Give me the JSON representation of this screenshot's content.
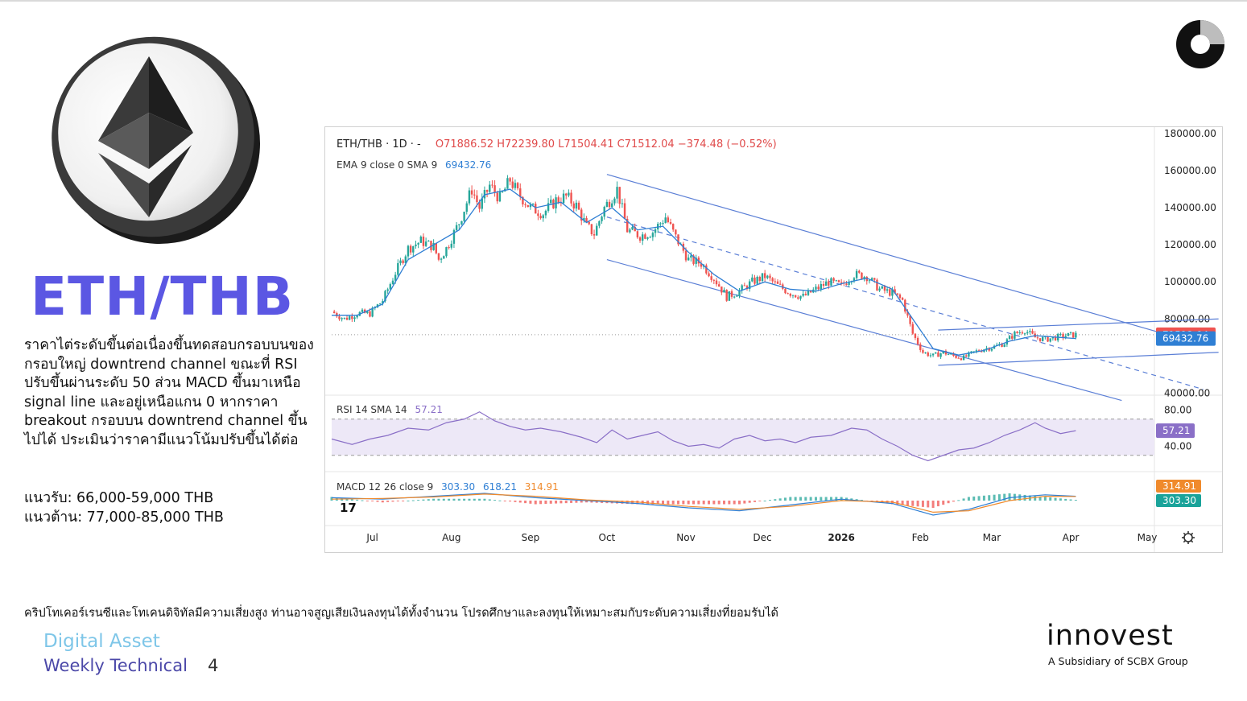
{
  "asset": {
    "title": "ETH/THB",
    "description": "ราคาไต่ระดับขึ้นต่อเนื่องขึ้นทดสอบกรอบบนของกรอบใหญ่ downtrend channel ขณะที่ RSI ปรับขึ้นผ่านระดับ 50 ส่วน MACD ขึ้นมาเหนือ signal line และอยู่เหนือแกน 0 หากราคา breakout กรอบบน downtrend channel ขึ้นไปได้ ประเมินว่าราคามีแนวโน้มปรับขึ้นได้ต่อ",
    "support": "แนวรับ: 66,000-59,000 THB",
    "resistance": "แนวต้าน: 77,000-85,000 THB"
  },
  "disclaimer": "คริปโทเคอร์เรนซีและโทเคนดิจิทัลมีความเสี่ยงสูง ท่านอาจสูญเสียเงินลงทุนได้ทั้งจำนวน โปรดศึกษาและลงทุนให้เหมาะสมกับระดับความเสี่ยงที่ยอมรับได้",
  "footer": {
    "line1": "Digital Asset",
    "line2": "Weekly Technical",
    "page": "4"
  },
  "brand": {
    "name": "innovest",
    "subtitle": "A Subsidiary of SCBX Group"
  },
  "icons": [
    "ethereum-coin-icon",
    "top-right-logo-icon",
    "tradingview-logo-icon",
    "settings-gear-icon"
  ],
  "colors": {
    "title": "#5b57e3",
    "footer_light": "#7ec6e8",
    "footer_dark": "#4b48a8",
    "up": "#26a69a",
    "down": "#ef5350",
    "ema": "#2f7fd4",
    "rsi": "#8a6fc7",
    "channel": "#5b7fd6",
    "signal": "#f08a2c"
  },
  "chart_data": {
    "type": "candlestick",
    "header": {
      "pair": "ETH/THB · 1D · -",
      "ohlc": "O71886.52 H72239.80 L71504.41 C71512.04 −374.48 (−0.52%)",
      "ema_label": "EMA 9 close 0 SMA 9",
      "ema_value": "69432.76",
      "rsi_label": "RSI 14 SMA 14",
      "rsi_value": "57.21",
      "macd_label": "MACD 12 26 close 9",
      "macd_v1": "303.30",
      "macd_v2": "618.21",
      "macd_v3": "314.91"
    },
    "price_axis": {
      "ticks": [
        "180000.00",
        "160000.00",
        "140000.00",
        "120000.00",
        "100000.00",
        "80000.00",
        "40000.00"
      ],
      "tick_values": [
        180000,
        160000,
        140000,
        120000,
        100000,
        80000,
        40000
      ],
      "ylim": [
        38000,
        180000
      ]
    },
    "last_price_label": "71512.04",
    "ema_label_value": "69432.76",
    "rsi_axis": {
      "ticks": [
        "80.00",
        "40.00"
      ],
      "tick_values": [
        80,
        40
      ],
      "ylim": [
        12,
        92
      ],
      "band": [
        30,
        70
      ],
      "current_label": "57.21"
    },
    "macd_axis_labels": [
      "314.91",
      "303.30"
    ],
    "x_labels": [
      "Jul",
      "Aug",
      "Sep",
      "Oct",
      "Nov",
      "Dec",
      "2026",
      "Feb",
      "Mar",
      "Apr",
      "May"
    ],
    "x_label_day": [
      16,
      47,
      78,
      108,
      139,
      169,
      200,
      231,
      259,
      290,
      320
    ],
    "price_path": [
      [
        0,
        84000
      ],
      [
        5,
        80000
      ],
      [
        10,
        83000
      ],
      [
        15,
        83000
      ],
      [
        20,
        90000
      ],
      [
        25,
        105000
      ],
      [
        30,
        118000
      ],
      [
        35,
        122000
      ],
      [
        40,
        119000
      ],
      [
        42,
        112000
      ],
      [
        45,
        118000
      ],
      [
        50,
        132000
      ],
      [
        55,
        150000
      ],
      [
        58,
        140000
      ],
      [
        62,
        152000
      ],
      [
        66,
        145000
      ],
      [
        70,
        155000
      ],
      [
        73,
        148000
      ],
      [
        78,
        140000
      ],
      [
        83,
        137000
      ],
      [
        88,
        144000
      ],
      [
        92,
        146000
      ],
      [
        96,
        141000
      ],
      [
        100,
        130000
      ],
      [
        103,
        126000
      ],
      [
        107,
        140000
      ],
      [
        112,
        150000
      ],
      [
        116,
        128000
      ],
      [
        121,
        125000
      ],
      [
        126,
        127000
      ],
      [
        131,
        135000
      ],
      [
        135,
        124000
      ],
      [
        140,
        112000
      ],
      [
        145,
        110000
      ],
      [
        150,
        102000
      ],
      [
        155,
        92000
      ],
      [
        160,
        95000
      ],
      [
        165,
        100000
      ],
      [
        170,
        103000
      ],
      [
        175,
        98000
      ],
      [
        180,
        94000
      ],
      [
        185,
        92000
      ],
      [
        190,
        96000
      ],
      [
        195,
        100000
      ],
      [
        200,
        98000
      ],
      [
        205,
        104000
      ],
      [
        210,
        103000
      ],
      [
        215,
        96000
      ],
      [
        220,
        94000
      ],
      [
        224,
        90000
      ],
      [
        228,
        72000
      ],
      [
        232,
        62000
      ],
      [
        236,
        60000
      ],
      [
        240,
        62000
      ],
      [
        244,
        60000
      ],
      [
        248,
        59000
      ],
      [
        252,
        62000
      ],
      [
        256,
        64000
      ],
      [
        260,
        65000
      ],
      [
        264,
        67000
      ],
      [
        268,
        72000
      ],
      [
        272,
        74000
      ],
      [
        276,
        70000
      ],
      [
        280,
        69000
      ],
      [
        284,
        70000
      ],
      [
        288,
        71000
      ],
      [
        292,
        71512
      ]
    ],
    "ema_path": [
      [
        0,
        82000
      ],
      [
        10,
        82000
      ],
      [
        20,
        88000
      ],
      [
        30,
        112000
      ],
      [
        40,
        120000
      ],
      [
        50,
        128000
      ],
      [
        60,
        147000
      ],
      [
        70,
        150000
      ],
      [
        80,
        140000
      ],
      [
        90,
        143000
      ],
      [
        100,
        132000
      ],
      [
        110,
        140000
      ],
      [
        120,
        128000
      ],
      [
        130,
        130000
      ],
      [
        140,
        116000
      ],
      [
        150,
        104000
      ],
      [
        160,
        95000
      ],
      [
        170,
        100000
      ],
      [
        180,
        96000
      ],
      [
        190,
        95000
      ],
      [
        200,
        99000
      ],
      [
        210,
        102000
      ],
      [
        220,
        96000
      ],
      [
        228,
        80000
      ],
      [
        236,
        64000
      ],
      [
        246,
        60500
      ],
      [
        256,
        63000
      ],
      [
        266,
        68000
      ],
      [
        276,
        71000
      ],
      [
        286,
        70000
      ],
      [
        292,
        69433
      ]
    ],
    "channels": [
      {
        "name": "outer-upper",
        "from": [
          108,
          158000
        ],
        "to": [
          342,
          66000
        ]
      },
      {
        "name": "outer-lower",
        "from": [
          108,
          112000
        ],
        "to": [
          310,
          36000
        ]
      },
      {
        "name": "outer-mid",
        "from": [
          108,
          135000
        ],
        "to": [
          342,
          42000
        ],
        "dashed": true
      },
      {
        "name": "inner-upper",
        "from": [
          238,
          74000
        ],
        "to": [
          348,
          80000
        ]
      },
      {
        "name": "inner-lower",
        "from": [
          238,
          55000
        ],
        "to": [
          348,
          62000
        ]
      }
    ],
    "rsi_path": [
      [
        0,
        48
      ],
      [
        8,
        42
      ],
      [
        15,
        48
      ],
      [
        22,
        52
      ],
      [
        30,
        60
      ],
      [
        38,
        58
      ],
      [
        45,
        66
      ],
      [
        52,
        70
      ],
      [
        58,
        78
      ],
      [
        64,
        68
      ],
      [
        70,
        62
      ],
      [
        76,
        58
      ],
      [
        82,
        60
      ],
      [
        90,
        56
      ],
      [
        98,
        50
      ],
      [
        104,
        44
      ],
      [
        110,
        58
      ],
      [
        116,
        48
      ],
      [
        122,
        52
      ],
      [
        128,
        56
      ],
      [
        134,
        46
      ],
      [
        140,
        40
      ],
      [
        146,
        42
      ],
      [
        152,
        38
      ],
      [
        158,
        48
      ],
      [
        164,
        52
      ],
      [
        170,
        46
      ],
      [
        176,
        48
      ],
      [
        182,
        44
      ],
      [
        188,
        50
      ],
      [
        196,
        52
      ],
      [
        204,
        60
      ],
      [
        210,
        58
      ],
      [
        216,
        48
      ],
      [
        222,
        40
      ],
      [
        228,
        30
      ],
      [
        234,
        24
      ],
      [
        240,
        30
      ],
      [
        246,
        36
      ],
      [
        252,
        38
      ],
      [
        258,
        44
      ],
      [
        264,
        52
      ],
      [
        270,
        58
      ],
      [
        276,
        66
      ],
      [
        280,
        60
      ],
      [
        286,
        54
      ],
      [
        292,
        57.21
      ]
    ],
    "macd_line": [
      [
        0,
        0.2
      ],
      [
        20,
        0.1
      ],
      [
        40,
        0.3
      ],
      [
        60,
        0.5
      ],
      [
        80,
        0.2
      ],
      [
        100,
        0.0
      ],
      [
        120,
        -0.2
      ],
      [
        140,
        -0.5
      ],
      [
        160,
        -0.7
      ],
      [
        180,
        -0.3
      ],
      [
        200,
        0.1
      ],
      [
        220,
        -0.2
      ],
      [
        236,
        -1.0
      ],
      [
        250,
        -0.6
      ],
      [
        266,
        0.2
      ],
      [
        280,
        0.4
      ],
      [
        292,
        0.3
      ]
    ],
    "signal_line": [
      [
        0,
        0.1
      ],
      [
        20,
        0.15
      ],
      [
        40,
        0.25
      ],
      [
        60,
        0.45
      ],
      [
        80,
        0.3
      ],
      [
        100,
        0.05
      ],
      [
        120,
        -0.1
      ],
      [
        140,
        -0.4
      ],
      [
        160,
        -0.6
      ],
      [
        180,
        -0.4
      ],
      [
        200,
        0.0
      ],
      [
        220,
        -0.1
      ],
      [
        236,
        -0.8
      ],
      [
        250,
        -0.7
      ],
      [
        266,
        0.0
      ],
      [
        280,
        0.3
      ],
      [
        292,
        0.28
      ]
    ]
  }
}
